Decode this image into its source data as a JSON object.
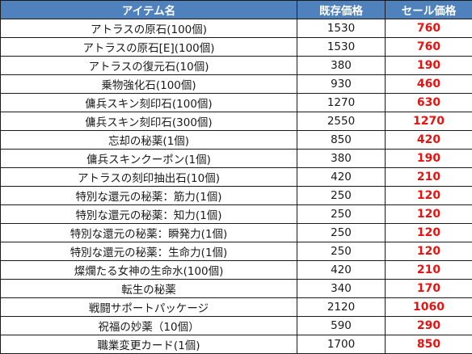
{
  "colors": {
    "header_bg": "#4f81bd",
    "header_text": "#ffffff",
    "sale_text": "#e8120f",
    "border": "#1a1a1a"
  },
  "table": {
    "headers": {
      "name": "アイテム名",
      "regular": "既存価格",
      "sale": "セール価格"
    },
    "rows": [
      {
        "name": "アトラスの原石(100個)",
        "regular": "1530",
        "sale": "760"
      },
      {
        "name": "アトラスの原石[E](100個)",
        "regular": "1530",
        "sale": "760"
      },
      {
        "name": "アトラスの復元石(10個)",
        "regular": "380",
        "sale": "190"
      },
      {
        "name": "乗物強化石(100個)",
        "regular": "930",
        "sale": "460"
      },
      {
        "name": "傭兵スキン刻印石(100個)",
        "regular": "1270",
        "sale": "630"
      },
      {
        "name": "傭兵スキン刻印石(300個)",
        "regular": "2550",
        "sale": "1270"
      },
      {
        "name": "忘却の秘薬(1個)",
        "regular": "850",
        "sale": "420"
      },
      {
        "name": "傭兵スキンクーポン(1個)",
        "regular": "380",
        "sale": "190"
      },
      {
        "name": "アトラスの刻印抽出石(10個)",
        "regular": "420",
        "sale": "210"
      },
      {
        "name": "特別な還元の秘薬：筋力(1個)",
        "regular": "250",
        "sale": "120"
      },
      {
        "name": "特別な還元の秘薬：知力(1個)",
        "regular": "250",
        "sale": "120"
      },
      {
        "name": "特別な還元の秘薬：瞬発力(1個)",
        "regular": "250",
        "sale": "120"
      },
      {
        "name": "特別な還元の秘薬：生命力(1個)",
        "regular": "250",
        "sale": "120"
      },
      {
        "name": "燦爛たる女神の生命水(100個)",
        "regular": "420",
        "sale": "210"
      },
      {
        "name": "転生の秘薬",
        "regular": "340",
        "sale": "170"
      },
      {
        "name": "戦闘サポートパッケージ",
        "regular": "2120",
        "sale": "1060"
      },
      {
        "name": "祝福の妙薬（10個）",
        "regular": "590",
        "sale": "290"
      },
      {
        "name": "職業変更カード(1個)",
        "regular": "1700",
        "sale": "850"
      }
    ]
  }
}
